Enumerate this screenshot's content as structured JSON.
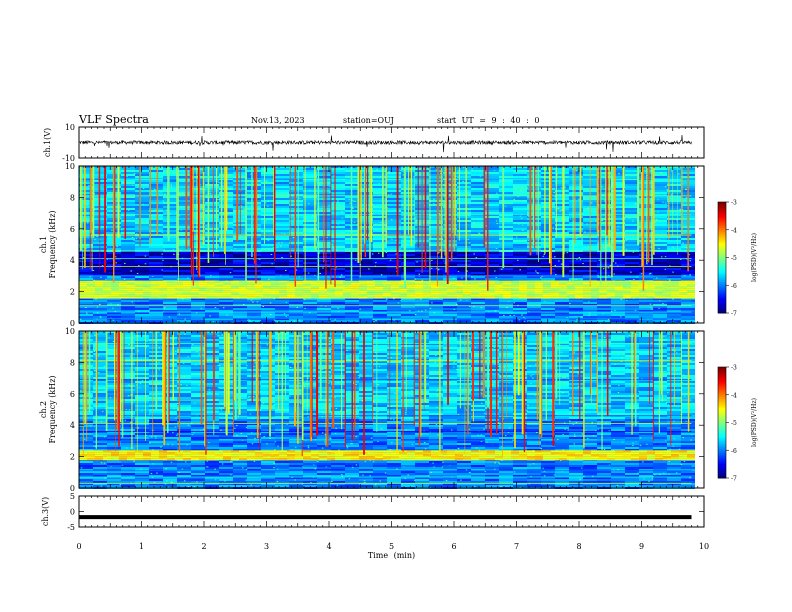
{
  "header": {
    "title": "VLF Spectra",
    "date": "Nov.13, 2023",
    "station": "station=OUJ",
    "start": "start UT = 9 : 40 : 0"
  },
  "chart_data": [
    {
      "type": "line",
      "ylabel": "ch.1(V)",
      "ylim": [
        -10,
        10
      ],
      "yticks": [
        "10",
        "-10"
      ],
      "xlim": [
        0,
        10
      ],
      "description_series": "waveform",
      "baseline": 0
    },
    {
      "type": "heatmap",
      "ylabel_line1": "ch.1",
      "ylabel_line2": "Frequency (kHz)",
      "ylim": [
        0,
        10
      ],
      "yticks": [
        "0",
        "2",
        "4",
        "6",
        "8",
        "10"
      ],
      "xlim": [
        0,
        10
      ],
      "data_end_min": 9.8,
      "colorbar": {
        "label": "log(PSD)(V²/Hz)",
        "range": [
          -7,
          -3
        ],
        "ticks": [
          "-3",
          "-4",
          "-5",
          "-6",
          "-7"
        ]
      }
    },
    {
      "type": "heatmap",
      "ylabel_line1": "ch.2",
      "ylabel_line2": "Frequency (kHz)",
      "ylim": [
        0,
        10
      ],
      "yticks": [
        "0",
        "2",
        "4",
        "6",
        "8",
        "10"
      ],
      "xlim": [
        0,
        10
      ],
      "data_end_min": 9.8,
      "colorbar": {
        "label": "log(PSD)(V²/Hz)",
        "range": [
          -7,
          -3
        ],
        "ticks": [
          "-3",
          "-4",
          "-5",
          "-6",
          "-7"
        ]
      }
    },
    {
      "type": "line",
      "ylabel": "ch.3(V)",
      "ylim": [
        -5,
        5
      ],
      "yticks": [
        "5",
        "0",
        "-5"
      ],
      "xlim": [
        0,
        10
      ],
      "level": -1.8,
      "xlabel": "Time (min)",
      "xticks": [
        "0",
        "1",
        "2",
        "3",
        "4",
        "5",
        "6",
        "7",
        "8",
        "9",
        "10"
      ]
    }
  ],
  "colors": {
    "axis": "#000000",
    "background": "#ffffff"
  }
}
